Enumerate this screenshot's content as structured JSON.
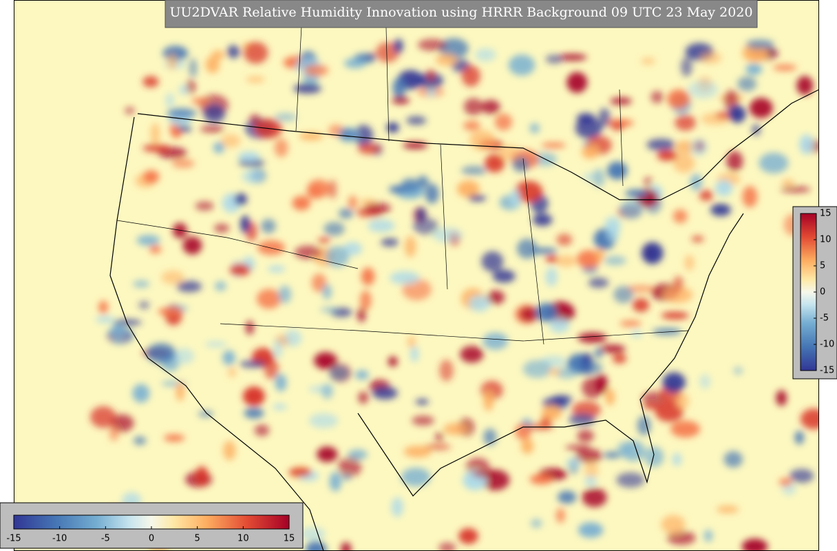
{
  "title": "UU2DVAR Relative Humidity Innovation using HRRR Background 09 UTC 23 May 2020",
  "colorbar_right": {
    "ticks": [
      15,
      10,
      5,
      0,
      -5,
      -10,
      -15
    ]
  },
  "colorbar_bottom": {
    "ticks": [
      -15,
      -10,
      -5,
      0,
      5,
      10,
      15
    ]
  }
}
